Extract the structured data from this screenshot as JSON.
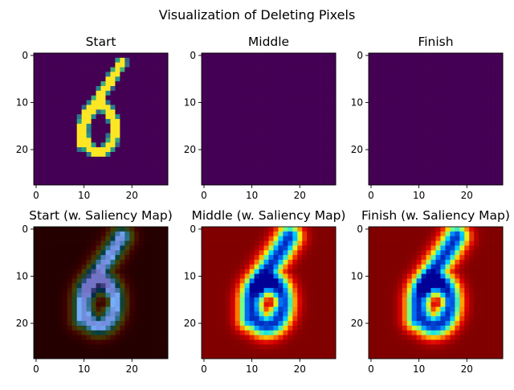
{
  "figure": {
    "title": "Visualization of Deleting Pixels"
  },
  "chart_data": [
    {
      "type": "heatmap",
      "title": "Start",
      "image": "digit-6",
      "colormap": "viridis",
      "xlim": [
        -0.5,
        27.5
      ],
      "ylim": [
        27.5,
        -0.5
      ],
      "xticks": [
        0,
        10,
        20
      ],
      "yticks": [
        0,
        10,
        20
      ]
    },
    {
      "type": "heatmap",
      "title": "Middle",
      "image": "blank",
      "colormap": "viridis",
      "xlim": [
        -0.5,
        27.5
      ],
      "ylim": [
        27.5,
        -0.5
      ],
      "xticks": [
        0,
        10,
        20
      ],
      "yticks": [
        0,
        10,
        20
      ]
    },
    {
      "type": "heatmap",
      "title": "Finish",
      "image": "blank",
      "colormap": "viridis",
      "xlim": [
        -0.5,
        27.5
      ],
      "ylim": [
        27.5,
        -0.5
      ],
      "xticks": [
        0,
        10,
        20
      ],
      "yticks": [
        0,
        10,
        20
      ]
    },
    {
      "type": "heatmap",
      "title": "Start (w. Saliency Map)",
      "image": "digit-6-with-saliency",
      "colormap": "jet-overlay-dark",
      "xlim": [
        -0.5,
        27.5
      ],
      "ylim": [
        27.5,
        -0.5
      ],
      "xticks": [
        0,
        10,
        20
      ],
      "yticks": [
        0,
        10,
        20
      ]
    },
    {
      "type": "heatmap",
      "title": "Middle (w. Saliency Map)",
      "image": "saliency-map",
      "colormap": "jet",
      "xlim": [
        -0.5,
        27.5
      ],
      "ylim": [
        27.5,
        -0.5
      ],
      "xticks": [
        0,
        10,
        20
      ],
      "yticks": [
        0,
        10,
        20
      ]
    },
    {
      "type": "heatmap",
      "title": "Finish (w. Saliency Map)",
      "image": "saliency-map",
      "colormap": "jet",
      "xlim": [
        -0.5,
        27.5
      ],
      "ylim": [
        27.5,
        -0.5
      ],
      "xticks": [
        0,
        10,
        20
      ],
      "yticks": [
        0,
        10,
        20
      ]
    }
  ]
}
